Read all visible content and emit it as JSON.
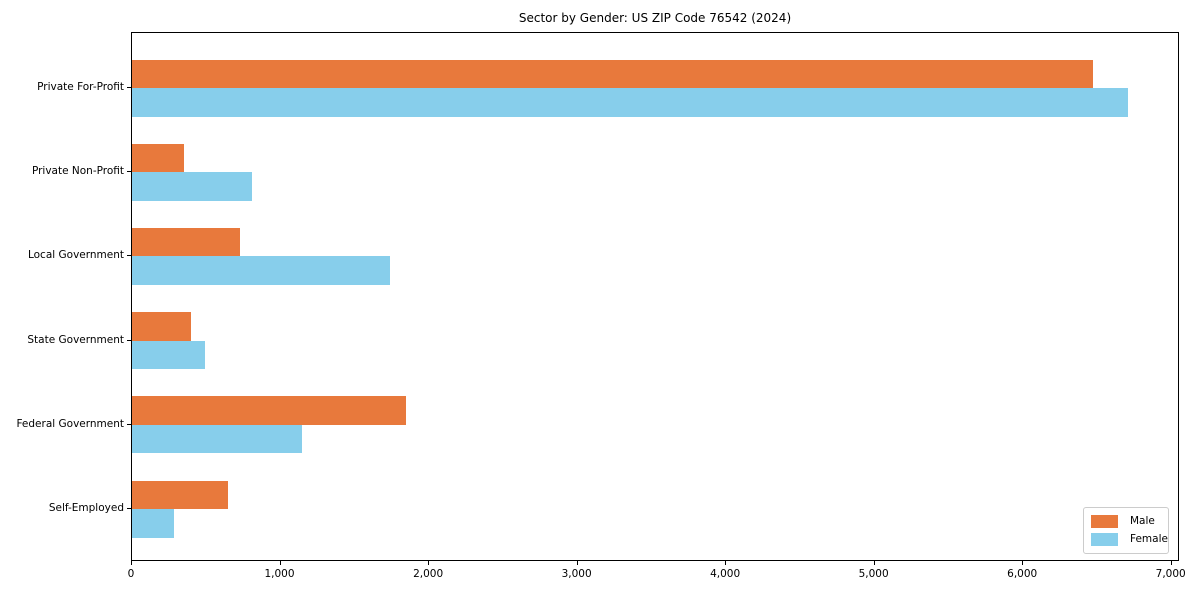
{
  "chart": {
    "title": "Sector by Gender: US ZIP Code 76542 (2024)"
  },
  "chart_data": {
    "type": "bar",
    "orientation": "horizontal",
    "title": "Sector by Gender: US ZIP Code 76542 (2024)",
    "xlabel": "",
    "ylabel": "",
    "categories": [
      "Private For-Profit",
      "Private Non-Profit",
      "Local Government",
      "State Government",
      "Federal Government",
      "Self-Employed"
    ],
    "series": [
      {
        "name": "Male",
        "color": "#e8793c",
        "values": [
          6480,
          350,
          730,
          395,
          1845,
          645
        ]
      },
      {
        "name": "Female",
        "color": "#87ceeb",
        "values": [
          6720,
          810,
          1740,
          490,
          1150,
          280
        ]
      }
    ],
    "xlim": [
      0,
      7056
    ],
    "xticks": [
      0,
      1000,
      2000,
      3000,
      4000,
      5000,
      6000,
      7000
    ],
    "xtick_labels": [
      "0",
      "1,000",
      "2,000",
      "3,000",
      "4,000",
      "5,000",
      "6,000",
      "7,000"
    ],
    "grid": false,
    "legend": {
      "position": "lower right",
      "entries": [
        "Male",
        "Female"
      ]
    }
  }
}
